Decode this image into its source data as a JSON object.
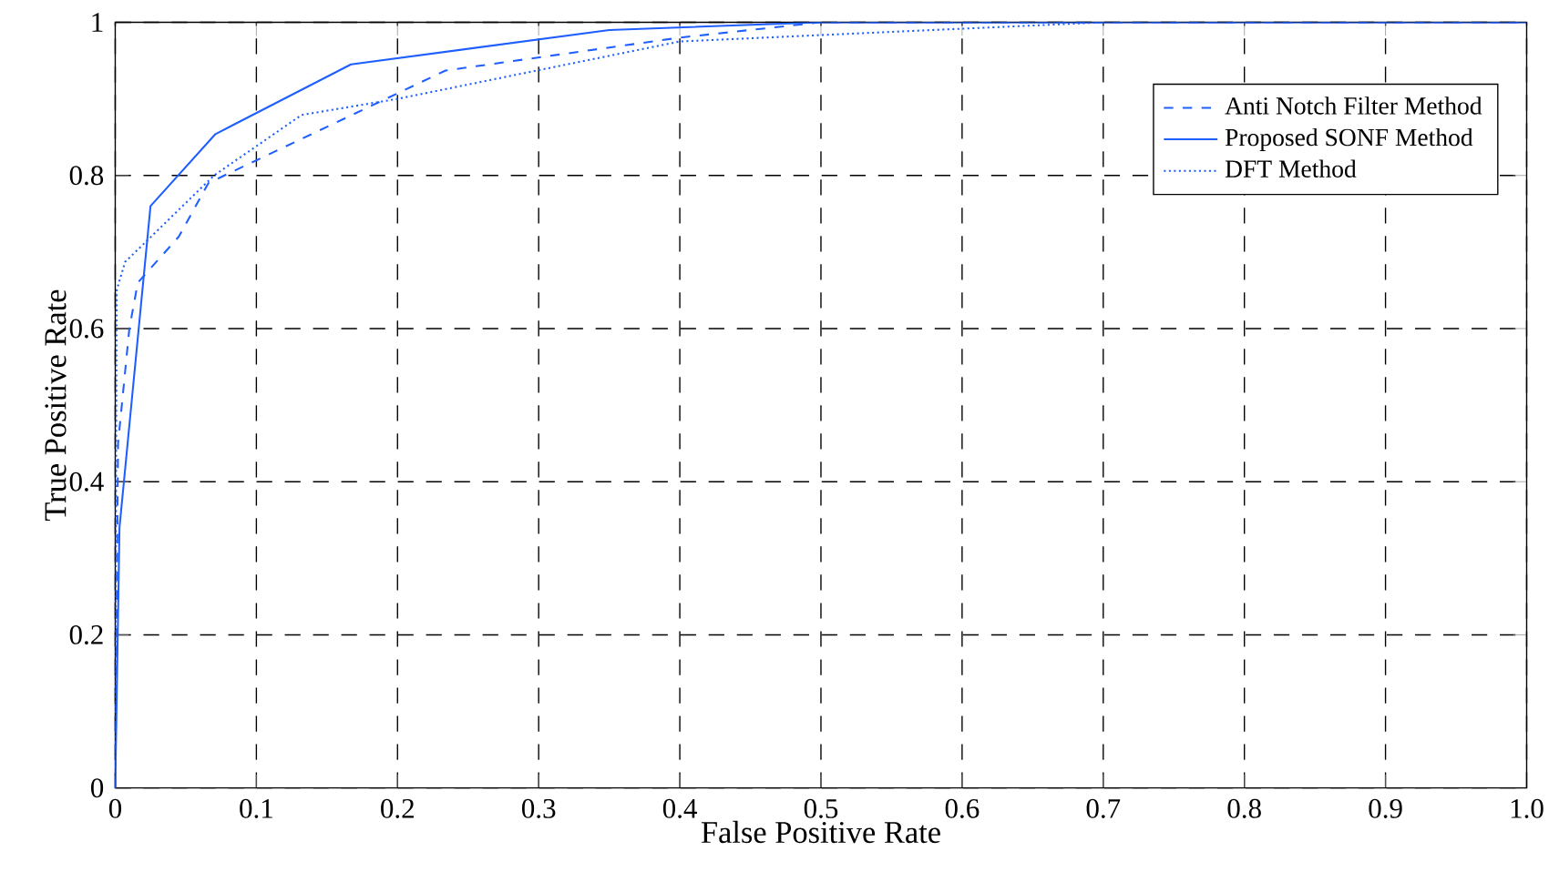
{
  "chart_data": {
    "type": "line",
    "xlabel": "False Positive Rate",
    "ylabel": "True Positive Rate",
    "xlim": [
      0,
      1
    ],
    "ylim": [
      0,
      1
    ],
    "xticks": [
      0,
      0.1,
      0.2,
      0.3,
      0.4,
      0.5,
      0.6,
      0.7,
      0.8,
      0.9,
      {
        "value": 1,
        "label": "1.0"
      }
    ],
    "yticks": [
      0,
      0.2,
      0.4,
      0.6,
      0.8,
      1
    ],
    "grid": true,
    "legend": "top right",
    "series": [
      {
        "name": "Anti Notch Filter Method",
        "color": "#1f5fff",
        "line_style": "dashed",
        "x": [
          0,
          0.002,
          0.01,
          0.016,
          0.045,
          0.066,
          0.234,
          0.4,
          0.5,
          1
        ],
        "values": [
          0,
          0.45,
          0.6,
          0.66,
          0.72,
          0.79,
          0.937,
          0.98,
          1,
          1
        ]
      },
      {
        "name": "Proposed SONF Method",
        "color": "#1f5fff",
        "line_style": "solid",
        "x": [
          0,
          0.003,
          0.025,
          0.071,
          0.167,
          0.35,
          0.5,
          1
        ],
        "values": [
          0,
          0.34,
          0.76,
          0.854,
          0.945,
          0.99,
          1,
          1
        ]
      },
      {
        "name": "DFT Method",
        "color": "#1f5fff",
        "line_style": "dotted",
        "x": [
          0,
          0.001,
          0.007,
          0.07,
          0.132,
          0.2,
          0.4,
          0.7
        ],
        "values": [
          0,
          0.65,
          0.687,
          0.8,
          0.879,
          0.9,
          0.975,
          1
        ]
      }
    ]
  }
}
